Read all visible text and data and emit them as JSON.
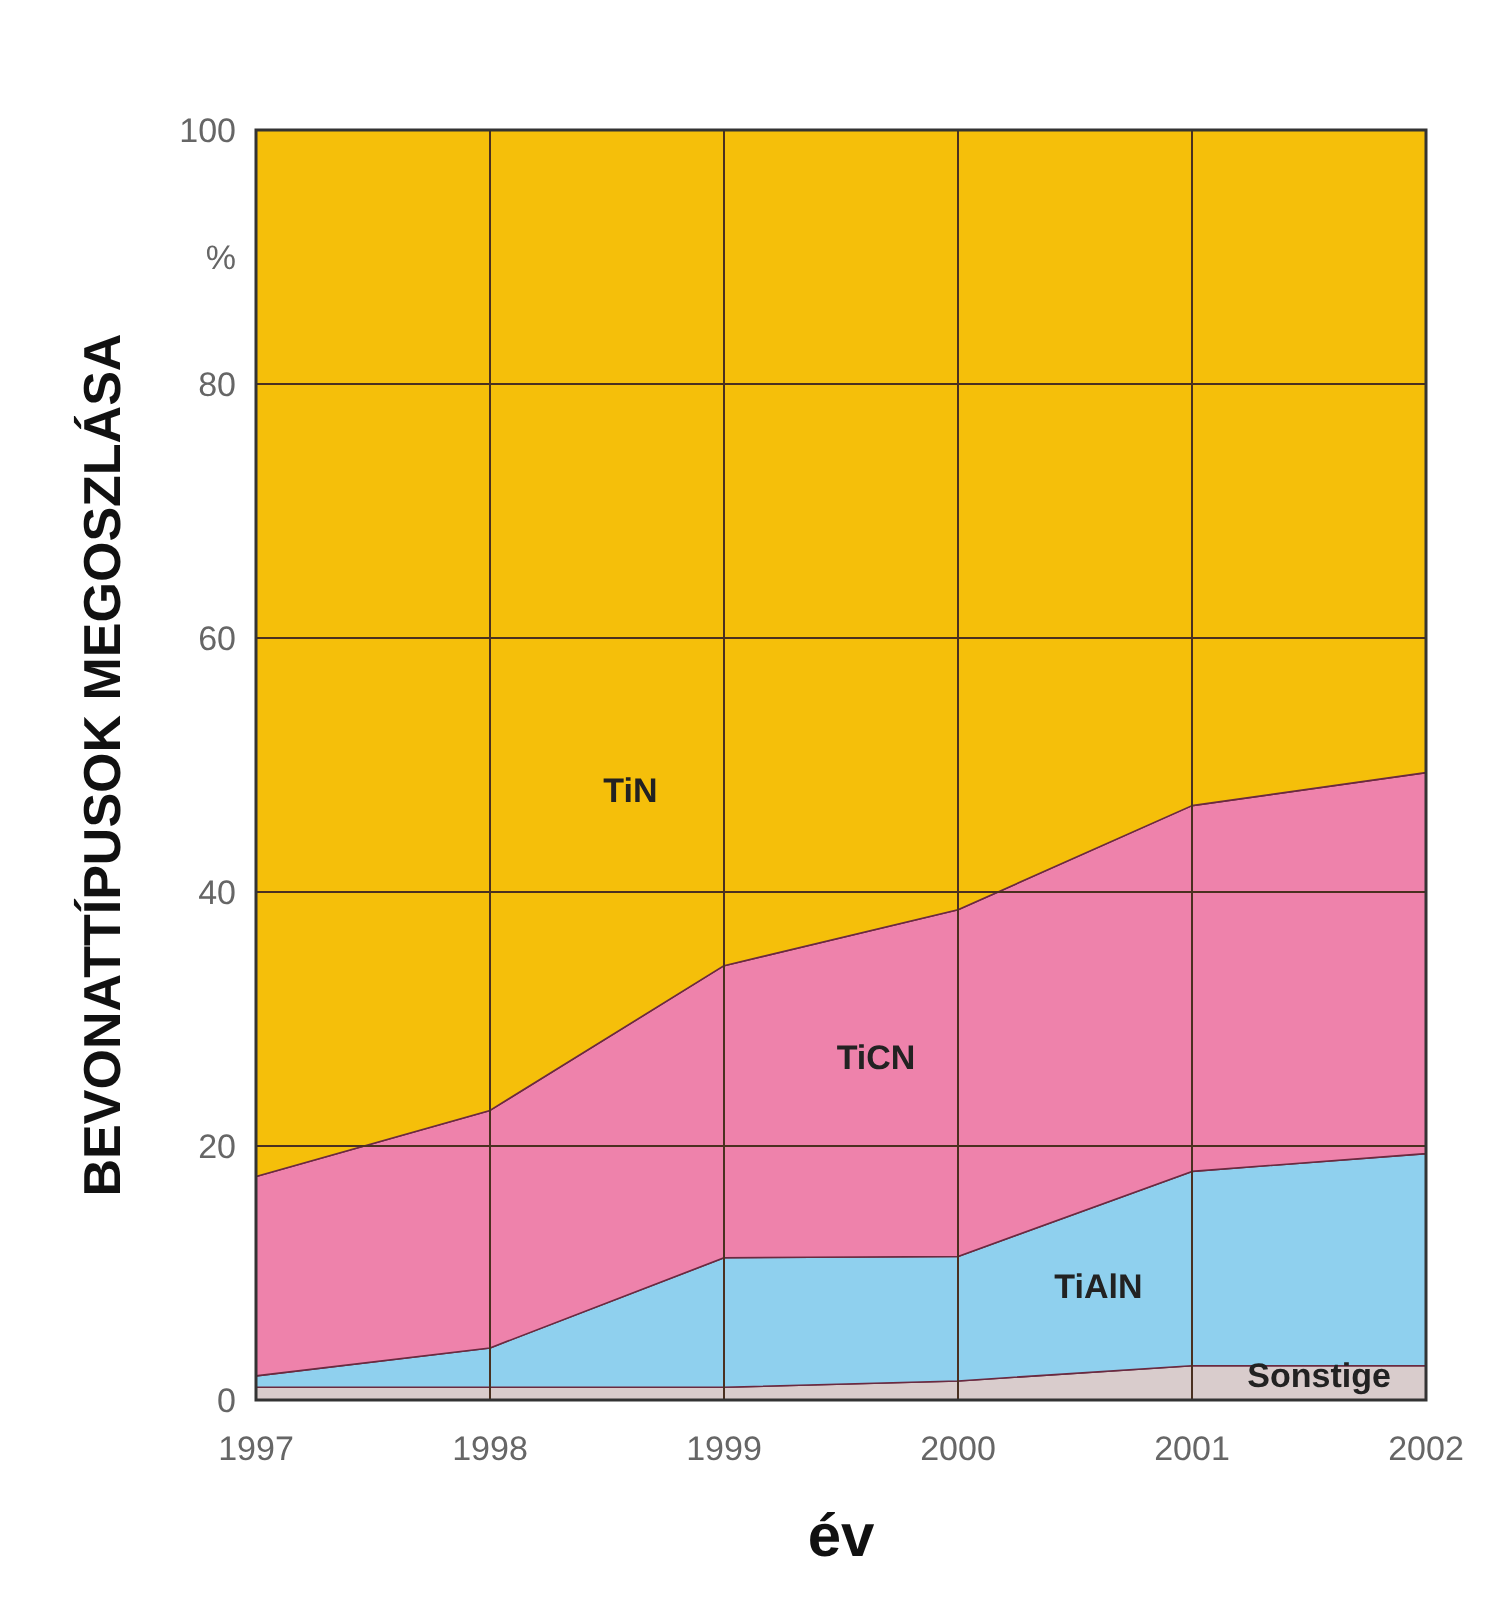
{
  "chart_data": {
    "type": "area",
    "stacked": true,
    "xlabel": "év",
    "ylabel": "BEVONATTÍPUSOK MEGOSZLÁSA",
    "x": [
      1997,
      1998,
      1999,
      2000,
      2001,
      2002
    ],
    "xlim": [
      1997,
      2002
    ],
    "xticks": [
      1997,
      1998,
      1999,
      2000,
      2001,
      2002
    ],
    "ylim": [
      0,
      100
    ],
    "yticks": [
      0,
      20,
      40,
      60,
      {
        "value": 90,
        "label": "%"
      },
      80,
      100
    ],
    "grid": true,
    "series": [
      {
        "name": "Sonstige",
        "color": "#d9cccc",
        "values": [
          1,
          1,
          1,
          1.5,
          2.7,
          2.7
        ]
      },
      {
        "name": "TiAlN",
        "color": "#8fd0ee",
        "values": [
          0.9,
          3.1,
          10.2,
          9.8,
          15.3,
          16.7
        ]
      },
      {
        "name": "TiCN",
        "color": "#ee82ab",
        "values": [
          15.7,
          18.7,
          23,
          27.3,
          28.8,
          30
        ]
      },
      {
        "name": "TiN",
        "color": "#f5bf0a",
        "values": [
          82.4,
          77.2,
          65.8,
          61.4,
          53.2,
          50.6
        ]
      }
    ]
  }
}
